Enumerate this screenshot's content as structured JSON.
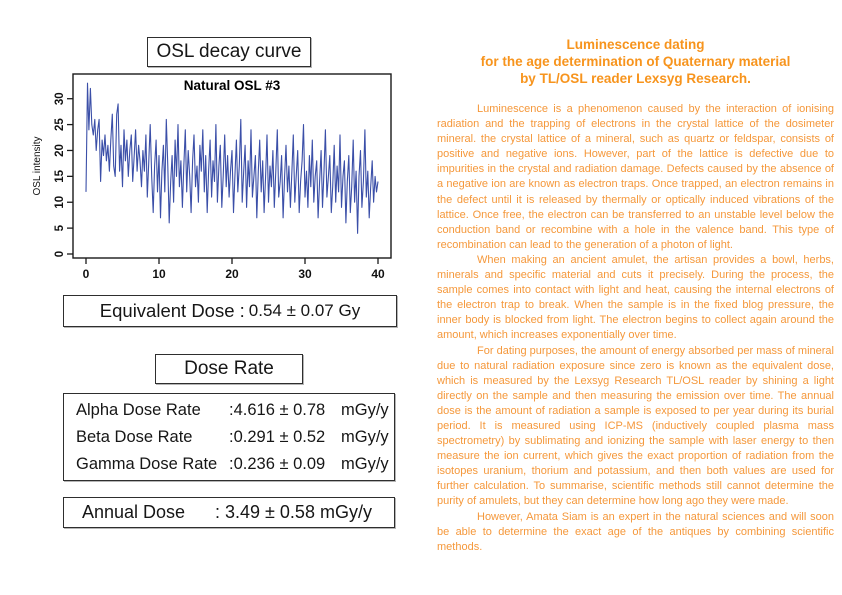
{
  "left": {
    "osl_title": "OSL decay curve",
    "equivalent_dose": {
      "label": "Equivalent Dose :",
      "value": "0.54 ± 0.07 Gy"
    },
    "dose_rate_title": "Dose Rate",
    "dose_rates": [
      {
        "label": "Alpha Dose Rate",
        "value": ":4.616 ± 0.78",
        "unit": "mGy/y"
      },
      {
        "label": "Beta Dose Rate",
        "value": ":0.291 ± 0.52",
        "unit": "mGy/y"
      },
      {
        "label": "Gamma Dose Rate",
        "value": ":0.236 ± 0.09",
        "unit": "mGy/y"
      }
    ],
    "annual_dose": {
      "label": "Annual Dose",
      "value": ": 3.49 ± 0.58 mGy/y"
    }
  },
  "chart_data": {
    "type": "line",
    "title": "Natural OSL #3",
    "xlabel": "",
    "ylabel": "OSL intensity",
    "xlim": [
      0,
      40
    ],
    "ylim": [
      0,
      34
    ],
    "x_ticks": [
      0,
      10,
      20,
      30,
      40
    ],
    "y_ticks": [
      0,
      5,
      10,
      15,
      20,
      25,
      30
    ],
    "grid": false,
    "legend": "none",
    "line_color": "#3B4FA8",
    "x_step": 0.2,
    "x_start": 0,
    "values": [
      12,
      33,
      24,
      32,
      25,
      23,
      26,
      20,
      24,
      26,
      14,
      22,
      19,
      23,
      18,
      21,
      16,
      22,
      27,
      17,
      15,
      27,
      29,
      16,
      21,
      13,
      24,
      18,
      22,
      15,
      20,
      23,
      14,
      19,
      24,
      16,
      21,
      18,
      13,
      20,
      16,
      23,
      11,
      18,
      25,
      15,
      8,
      17,
      22,
      12,
      19,
      7,
      16,
      21,
      12,
      26,
      17,
      6,
      14,
      19,
      10,
      22,
      15,
      25,
      13,
      18,
      9,
      17,
      24,
      12,
      20,
      15,
      8,
      18,
      23,
      13,
      17,
      10,
      21,
      16,
      24,
      12,
      19,
      8,
      16,
      22,
      11,
      18,
      14,
      25,
      10,
      17,
      21,
      9,
      15,
      23,
      13,
      19,
      11,
      16,
      20,
      8,
      15,
      22,
      12,
      17,
      26,
      10,
      16,
      21,
      9,
      18,
      13,
      24,
      11,
      15,
      19,
      7,
      16,
      22,
      12,
      18,
      8,
      15,
      23,
      10,
      17,
      13,
      20,
      9,
      16,
      24,
      11,
      14,
      19,
      7,
      15,
      21,
      12,
      17,
      9,
      16,
      23,
      10,
      15,
      20,
      8,
      14,
      18,
      25,
      11,
      16,
      9,
      19,
      13,
      22,
      10,
      15,
      18,
      7,
      14,
      20,
      9,
      16,
      24,
      11,
      15,
      19,
      8,
      13,
      21,
      10,
      17,
      12,
      23,
      9,
      15,
      18,
      6,
      14,
      19,
      8,
      13,
      22,
      10,
      16,
      4,
      15,
      20,
      9,
      14,
      24,
      11,
      16,
      7,
      13,
      18,
      10,
      15,
      12,
      14
    ]
  },
  "right": {
    "title_color": "#F7941D",
    "text_color": "#F5983B",
    "title_lines": [
      "Luminescence dating",
      "for the age determination of Quaternary material",
      "by TL/OSL reader Lexsyg Research."
    ],
    "paragraphs": [
      "Luminescence is a phenomenon caused by the interaction of ionising radiation and the trapping of electrons in the crystal lattice of the dosimeter mineral. the crystal lattice of a mineral, such as quartz or feldspar, consists of positive and negative ions. However, part of the lattice is defective due to impurities in the crystal and radiation damage. Defects caused by the absence of a negative ion are known as electron traps. Once trapped, an electron remains in the defect until it is released by thermally or optically induced vibrations of the lattice. Once free, the electron can be transferred to an unstable level below the conduction band or recombine with a hole in the valence band. This type of recombination can lead to the generation of a photon of light.",
      "When making an ancient amulet, the artisan provides a bowl, herbs, minerals and specific material and cuts it precisely. During the process, the sample comes into contact with light and heat, causing the internal electrons of the electron trap to break. When the sample is in the fixed blog pressure, the inner body is blocked from light. The electron begins to collect again around the amount, which increases exponentially over time.",
      "For dating purposes, the amount of energy absorbed per mass of mineral due to natural radiation exposure since zero is known as the equivalent dose, which is measured by the Lexsyg Research TL/OSL reader by shining a light directly on the sample and then measuring the emission over time. The annual dose is the amount of radiation a sample is exposed to per year during its burial period. It is measured using ICP-MS (inductively coupled plasma mass spectrometry) by sublimating and ionizing the sample with laser energy to then measure the ion current, which gives the exact proportion of radiation from the isotopes uranium, thorium and potassium, and then both values are used for further calculation. To summarise, scientific methods still cannot determine the purity of amulets, but they can determine how long ago they were made.",
      "However, Amata Siam is an expert in the natural sciences and will soon be able to determine the exact age of the antiques by combining scientific methods."
    ]
  }
}
